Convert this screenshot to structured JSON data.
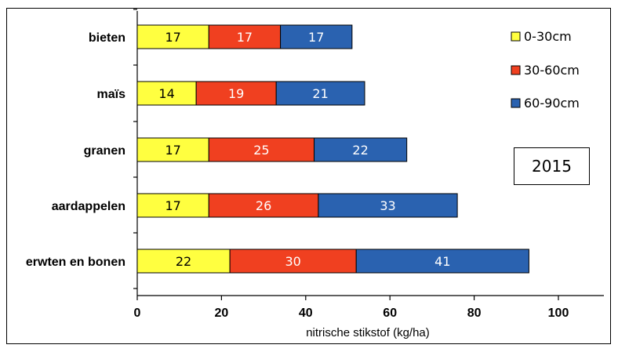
{
  "chart_data": {
    "type": "bar",
    "orientation": "horizontal",
    "stacked": true,
    "categories": [
      "bieten",
      "maïs",
      "granen",
      "aardappelen",
      "erwten en bonen"
    ],
    "series": [
      {
        "name": "0-30cm",
        "values": [
          17,
          14,
          17,
          17,
          22
        ],
        "color": "#ffff40"
      },
      {
        "name": "30-60cm",
        "values": [
          17,
          19,
          25,
          26,
          30
        ],
        "color": "#f04020"
      },
      {
        "name": "60-90cm",
        "values": [
          17,
          21,
          22,
          33,
          41
        ],
        "color": "#2a62b0"
      }
    ],
    "xlabel": "nitrische stikstof (kg/ha)",
    "xlim": [
      0,
      110
    ],
    "xticks": [
      0,
      20,
      40,
      60,
      80,
      100
    ],
    "grid": false,
    "legend_position": "top-right",
    "annotation": "2015"
  }
}
